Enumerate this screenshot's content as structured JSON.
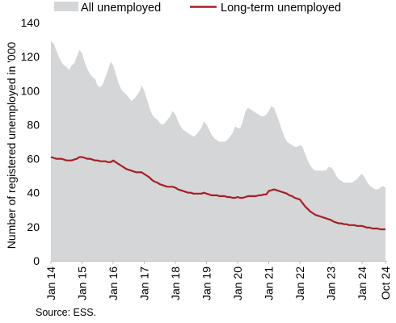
{
  "chart_data": {
    "type": "area",
    "ylabel": "Number of registered unemployed in '000",
    "ylim": [
      0,
      140
    ],
    "yticks": [
      0,
      20,
      40,
      60,
      80,
      100,
      120,
      140
    ],
    "xlim": [
      "2014-01",
      "2024-10"
    ],
    "xtick_labels": [
      "Jan 14",
      "Jan 15",
      "Jan 16",
      "Jan 17",
      "Jan 18",
      "Jan 19",
      "Jan 20",
      "Jan 21",
      "Jan 22",
      "Jan 23",
      "Jan 24",
      "Oct 24"
    ],
    "grid": false,
    "legend_position": "top",
    "series": [
      {
        "name": "All unemployed",
        "kind": "area",
        "color": "#d4d6d8",
        "points": [
          [
            "2014-01",
            129
          ],
          [
            "2014-02",
            128
          ],
          [
            "2014-03",
            124
          ],
          [
            "2014-04",
            120
          ],
          [
            "2014-05",
            117
          ],
          [
            "2014-06",
            115
          ],
          [
            "2014-07",
            114
          ],
          [
            "2014-08",
            112
          ],
          [
            "2014-09",
            115
          ],
          [
            "2014-10",
            116
          ],
          [
            "2014-11",
            120
          ],
          [
            "2014-12",
            124
          ],
          [
            "2015-01",
            122
          ],
          [
            "2015-02",
            117
          ],
          [
            "2015-03",
            113
          ],
          [
            "2015-04",
            110
          ],
          [
            "2015-05",
            108
          ],
          [
            "2015-06",
            107
          ],
          [
            "2015-07",
            103
          ],
          [
            "2015-08",
            102
          ],
          [
            "2015-09",
            104
          ],
          [
            "2015-10",
            108
          ],
          [
            "2015-11",
            112
          ],
          [
            "2015-12",
            117
          ],
          [
            "2016-01",
            115
          ],
          [
            "2016-02",
            110
          ],
          [
            "2016-03",
            105
          ],
          [
            "2016-04",
            101
          ],
          [
            "2016-05",
            99
          ],
          [
            "2016-06",
            98
          ],
          [
            "2016-07",
            96
          ],
          [
            "2016-08",
            94
          ],
          [
            "2016-09",
            95
          ],
          [
            "2016-10",
            97
          ],
          [
            "2016-11",
            99
          ],
          [
            "2016-12",
            103
          ],
          [
            "2017-01",
            100
          ],
          [
            "2017-02",
            95
          ],
          [
            "2017-03",
            90
          ],
          [
            "2017-04",
            86
          ],
          [
            "2017-05",
            84
          ],
          [
            "2017-06",
            83
          ],
          [
            "2017-07",
            81
          ],
          [
            "2017-08",
            80
          ],
          [
            "2017-09",
            81
          ],
          [
            "2017-10",
            83
          ],
          [
            "2017-11",
            85
          ],
          [
            "2017-12",
            88
          ],
          [
            "2018-01",
            86
          ],
          [
            "2018-02",
            82
          ],
          [
            "2018-03",
            79
          ],
          [
            "2018-04",
            77
          ],
          [
            "2018-05",
            76
          ],
          [
            "2018-06",
            75
          ],
          [
            "2018-07",
            74
          ],
          [
            "2018-08",
            73
          ],
          [
            "2018-09",
            74
          ],
          [
            "2018-10",
            76
          ],
          [
            "2018-11",
            78
          ],
          [
            "2018-12",
            82
          ],
          [
            "2019-01",
            80
          ],
          [
            "2019-02",
            77
          ],
          [
            "2019-03",
            74
          ],
          [
            "2019-04",
            72
          ],
          [
            "2019-05",
            71
          ],
          [
            "2019-06",
            70
          ],
          [
            "2019-07",
            70
          ],
          [
            "2019-08",
            70
          ],
          [
            "2019-09",
            71
          ],
          [
            "2019-10",
            73
          ],
          [
            "2019-11",
            75
          ],
          [
            "2019-12",
            79
          ],
          [
            "2020-01",
            78
          ],
          [
            "2020-02",
            78
          ],
          [
            "2020-03",
            82
          ],
          [
            "2020-04",
            88
          ],
          [
            "2020-05",
            90
          ],
          [
            "2020-06",
            89
          ],
          [
            "2020-07",
            88
          ],
          [
            "2020-08",
            87
          ],
          [
            "2020-09",
            86
          ],
          [
            "2020-10",
            85
          ],
          [
            "2020-11",
            85
          ],
          [
            "2020-12",
            86
          ],
          [
            "2021-01",
            88
          ],
          [
            "2021-02",
            91
          ],
          [
            "2021-03",
            90
          ],
          [
            "2021-04",
            86
          ],
          [
            "2021-05",
            82
          ],
          [
            "2021-06",
            77
          ],
          [
            "2021-07",
            73
          ],
          [
            "2021-08",
            70
          ],
          [
            "2021-09",
            69
          ],
          [
            "2021-10",
            68
          ],
          [
            "2021-11",
            67
          ],
          [
            "2021-12",
            67
          ],
          [
            "2022-01",
            68
          ],
          [
            "2022-02",
            67
          ],
          [
            "2022-03",
            63
          ],
          [
            "2022-04",
            59
          ],
          [
            "2022-05",
            56
          ],
          [
            "2022-06",
            54
          ],
          [
            "2022-07",
            53
          ],
          [
            "2022-08",
            53
          ],
          [
            "2022-09",
            53
          ],
          [
            "2022-10",
            53
          ],
          [
            "2022-11",
            53
          ],
          [
            "2022-12",
            55
          ],
          [
            "2023-01",
            55
          ],
          [
            "2023-02",
            53
          ],
          [
            "2023-03",
            50
          ],
          [
            "2023-04",
            48
          ],
          [
            "2023-05",
            47
          ],
          [
            "2023-06",
            46
          ],
          [
            "2023-07",
            46
          ],
          [
            "2023-08",
            46
          ],
          [
            "2023-09",
            46
          ],
          [
            "2023-10",
            47
          ],
          [
            "2023-11",
            48
          ],
          [
            "2023-12",
            50
          ],
          [
            "2024-01",
            51
          ],
          [
            "2024-02",
            49
          ],
          [
            "2024-03",
            46
          ],
          [
            "2024-04",
            44
          ],
          [
            "2024-05",
            43
          ],
          [
            "2024-06",
            42
          ],
          [
            "2024-07",
            42
          ],
          [
            "2024-08",
            43
          ],
          [
            "2024-09",
            44
          ],
          [
            "2024-10",
            43
          ]
        ]
      },
      {
        "name": "Long-term unemployed",
        "kind": "line",
        "color": "#a81e23",
        "points": [
          [
            "2014-01",
            61
          ],
          [
            "2014-02",
            60.5
          ],
          [
            "2014-03",
            60
          ],
          [
            "2014-04",
            60
          ],
          [
            "2014-05",
            60
          ],
          [
            "2014-06",
            59.5
          ],
          [
            "2014-07",
            59
          ],
          [
            "2014-08",
            59
          ],
          [
            "2014-09",
            59
          ],
          [
            "2014-10",
            59.5
          ],
          [
            "2014-11",
            60
          ],
          [
            "2014-12",
            61
          ],
          [
            "2015-01",
            61
          ],
          [
            "2015-02",
            60.5
          ],
          [
            "2015-03",
            60
          ],
          [
            "2015-04",
            60
          ],
          [
            "2015-05",
            59.5
          ],
          [
            "2015-06",
            59
          ],
          [
            "2015-07",
            59
          ],
          [
            "2015-08",
            58.5
          ],
          [
            "2015-09",
            58.5
          ],
          [
            "2015-10",
            58.5
          ],
          [
            "2015-11",
            58
          ],
          [
            "2015-12",
            58
          ],
          [
            "2016-01",
            59
          ],
          [
            "2016-02",
            58
          ],
          [
            "2016-03",
            57
          ],
          [
            "2016-04",
            56
          ],
          [
            "2016-05",
            55
          ],
          [
            "2016-06",
            54
          ],
          [
            "2016-07",
            53.5
          ],
          [
            "2016-08",
            53
          ],
          [
            "2016-09",
            52.5
          ],
          [
            "2016-10",
            52
          ],
          [
            "2016-11",
            52
          ],
          [
            "2016-12",
            52
          ],
          [
            "2017-01",
            51
          ],
          [
            "2017-02",
            50
          ],
          [
            "2017-03",
            49
          ],
          [
            "2017-04",
            47.5
          ],
          [
            "2017-05",
            46.5
          ],
          [
            "2017-06",
            46
          ],
          [
            "2017-07",
            45
          ],
          [
            "2017-08",
            44.5
          ],
          [
            "2017-09",
            44
          ],
          [
            "2017-10",
            43.5
          ],
          [
            "2017-11",
            43.5
          ],
          [
            "2017-12",
            43.5
          ],
          [
            "2018-01",
            43
          ],
          [
            "2018-02",
            42
          ],
          [
            "2018-03",
            41.5
          ],
          [
            "2018-04",
            41
          ],
          [
            "2018-05",
            40.5
          ],
          [
            "2018-06",
            40
          ],
          [
            "2018-07",
            40
          ],
          [
            "2018-08",
            39.5
          ],
          [
            "2018-09",
            39.5
          ],
          [
            "2018-10",
            39.5
          ],
          [
            "2018-11",
            39.5
          ],
          [
            "2018-12",
            40
          ],
          [
            "2019-01",
            39.5
          ],
          [
            "2019-02",
            39
          ],
          [
            "2019-03",
            38.5
          ],
          [
            "2019-04",
            38.5
          ],
          [
            "2019-05",
            38.5
          ],
          [
            "2019-06",
            38
          ],
          [
            "2019-07",
            38
          ],
          [
            "2019-08",
            38
          ],
          [
            "2019-09",
            37.5
          ],
          [
            "2019-10",
            37.5
          ],
          [
            "2019-11",
            37
          ],
          [
            "2019-12",
            37
          ],
          [
            "2020-01",
            37.5
          ],
          [
            "2020-02",
            37
          ],
          [
            "2020-03",
            37
          ],
          [
            "2020-04",
            37.5
          ],
          [
            "2020-05",
            38
          ],
          [
            "2020-06",
            38
          ],
          [
            "2020-07",
            38
          ],
          [
            "2020-08",
            38
          ],
          [
            "2020-09",
            38.5
          ],
          [
            "2020-10",
            38.5
          ],
          [
            "2020-11",
            39
          ],
          [
            "2020-12",
            39
          ],
          [
            "2021-01",
            41
          ],
          [
            "2021-02",
            41.5
          ],
          [
            "2021-03",
            42
          ],
          [
            "2021-04",
            41.5
          ],
          [
            "2021-05",
            41
          ],
          [
            "2021-06",
            40.5
          ],
          [
            "2021-07",
            40
          ],
          [
            "2021-08",
            39.5
          ],
          [
            "2021-09",
            38.5
          ],
          [
            "2021-10",
            38
          ],
          [
            "2021-11",
            37
          ],
          [
            "2021-12",
            36.5
          ],
          [
            "2022-01",
            36
          ],
          [
            "2022-02",
            34
          ],
          [
            "2022-03",
            32
          ],
          [
            "2022-04",
            30.5
          ],
          [
            "2022-05",
            29
          ],
          [
            "2022-06",
            28
          ],
          [
            "2022-07",
            27
          ],
          [
            "2022-08",
            26.5
          ],
          [
            "2022-09",
            26
          ],
          [
            "2022-10",
            25.5
          ],
          [
            "2022-11",
            25
          ],
          [
            "2022-12",
            24.5
          ],
          [
            "2023-01",
            24
          ],
          [
            "2023-02",
            23
          ],
          [
            "2023-03",
            22.5
          ],
          [
            "2023-04",
            22
          ],
          [
            "2023-05",
            22
          ],
          [
            "2023-06",
            21.5
          ],
          [
            "2023-07",
            21.5
          ],
          [
            "2023-08",
            21
          ],
          [
            "2023-09",
            21
          ],
          [
            "2023-10",
            21
          ],
          [
            "2023-11",
            20.5
          ],
          [
            "2023-12",
            20.5
          ],
          [
            "2024-01",
            20.5
          ],
          [
            "2024-02",
            20
          ],
          [
            "2024-03",
            19.5
          ],
          [
            "2024-04",
            19.5
          ],
          [
            "2024-05",
            19
          ],
          [
            "2024-06",
            19
          ],
          [
            "2024-07",
            19
          ],
          [
            "2024-08",
            18.5
          ],
          [
            "2024-09",
            18.5
          ],
          [
            "2024-10",
            18.5
          ]
        ]
      }
    ]
  },
  "source": "Source: ESS."
}
